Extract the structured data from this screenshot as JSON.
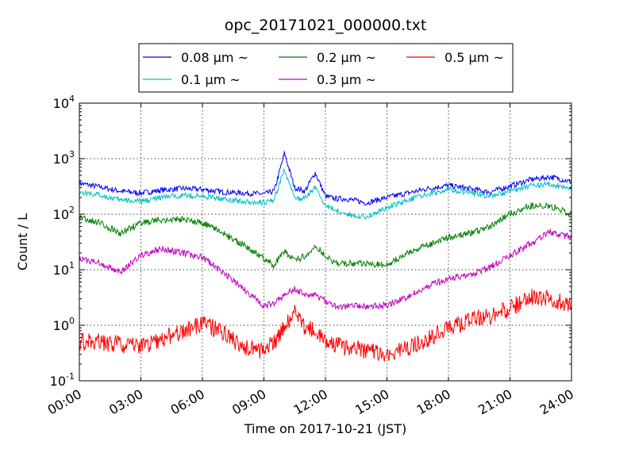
{
  "chart_data": {
    "type": "line",
    "title": "opc_20171021_000000.txt",
    "xlabel": "Time on 2017-10-21 (JST)",
    "ylabel": "Count / L",
    "y_scale": "log",
    "grid": true,
    "legend_position": "top",
    "xlim": [
      "2017-10-21 00:00",
      "2017-10-22 00:00"
    ],
    "ylim": [
      0.1,
      10000
    ],
    "x_ticks": [
      "00:00",
      "03:00",
      "06:00",
      "09:00",
      "12:00",
      "15:00",
      "18:00",
      "21:00",
      "24:00"
    ],
    "y_ticks": [
      {
        "base": "10",
        "exp": "-1",
        "value": 0.1
      },
      {
        "base": "10",
        "exp": "0",
        "value": 1
      },
      {
        "base": "10",
        "exp": "1",
        "value": 10
      },
      {
        "base": "10",
        "exp": "2",
        "value": 100
      },
      {
        "base": "10",
        "exp": "3",
        "value": 1000
      },
      {
        "base": "10",
        "exp": "4",
        "value": 10000
      }
    ],
    "x": [
      "00:00",
      "01:00",
      "02:00",
      "03:00",
      "04:00",
      "05:00",
      "06:00",
      "07:00",
      "08:00",
      "09:00",
      "09:30",
      "10:00",
      "10:30",
      "11:00",
      "11:30",
      "12:00",
      "12:30",
      "13:00",
      "14:00",
      "15:00",
      "16:00",
      "17:00",
      "18:00",
      "19:00",
      "20:00",
      "21:00",
      "22:00",
      "23:00",
      "24:00"
    ],
    "series": [
      {
        "name": "0.08 μm ~",
        "color": "#0000ff",
        "values": [
          360,
          310,
          260,
          240,
          270,
          290,
          280,
          250,
          240,
          230,
          260,
          1250,
          300,
          260,
          560,
          210,
          190,
          190,
          160,
          200,
          240,
          290,
          330,
          290,
          250,
          320,
          420,
          470,
          380
        ]
      },
      {
        "name": "0.1 μm ~",
        "color": "#00bfbf",
        "values": [
          250,
          220,
          180,
          170,
          200,
          220,
          210,
          190,
          170,
          160,
          180,
          650,
          190,
          190,
          310,
          140,
          120,
          100,
          90,
          130,
          180,
          230,
          280,
          250,
          210,
          260,
          330,
          350,
          280
        ]
      },
      {
        "name": "0.2 μm ~",
        "color": "#008000",
        "values": [
          85,
          70,
          45,
          70,
          80,
          80,
          70,
          45,
          28,
          16,
          12,
          22,
          14,
          18,
          27,
          18,
          13,
          13,
          13,
          12,
          20,
          28,
          38,
          45,
          60,
          100,
          140,
          140,
          100
        ]
      },
      {
        "name": "0.3 μm ~",
        "color": "#bf00bf",
        "values": [
          16,
          13,
          9,
          18,
          24,
          20,
          17,
          9,
          4.5,
          2.2,
          2.5,
          3.5,
          4.5,
          3.5,
          3.5,
          2.8,
          2.2,
          2.2,
          2.2,
          2.3,
          3.2,
          5,
          7,
          8,
          11,
          18,
          30,
          48,
          38
        ]
      },
      {
        "name": "0.5 μm ~",
        "color": "#ff0000",
        "values": [
          0.5,
          0.5,
          0.45,
          0.4,
          0.55,
          0.8,
          1.1,
          0.75,
          0.4,
          0.35,
          0.5,
          1.0,
          1.7,
          0.9,
          0.8,
          0.5,
          0.45,
          0.4,
          0.35,
          0.3,
          0.4,
          0.55,
          0.9,
          1.2,
          1.5,
          2.0,
          3.2,
          3.0,
          2.4
        ]
      }
    ]
  }
}
